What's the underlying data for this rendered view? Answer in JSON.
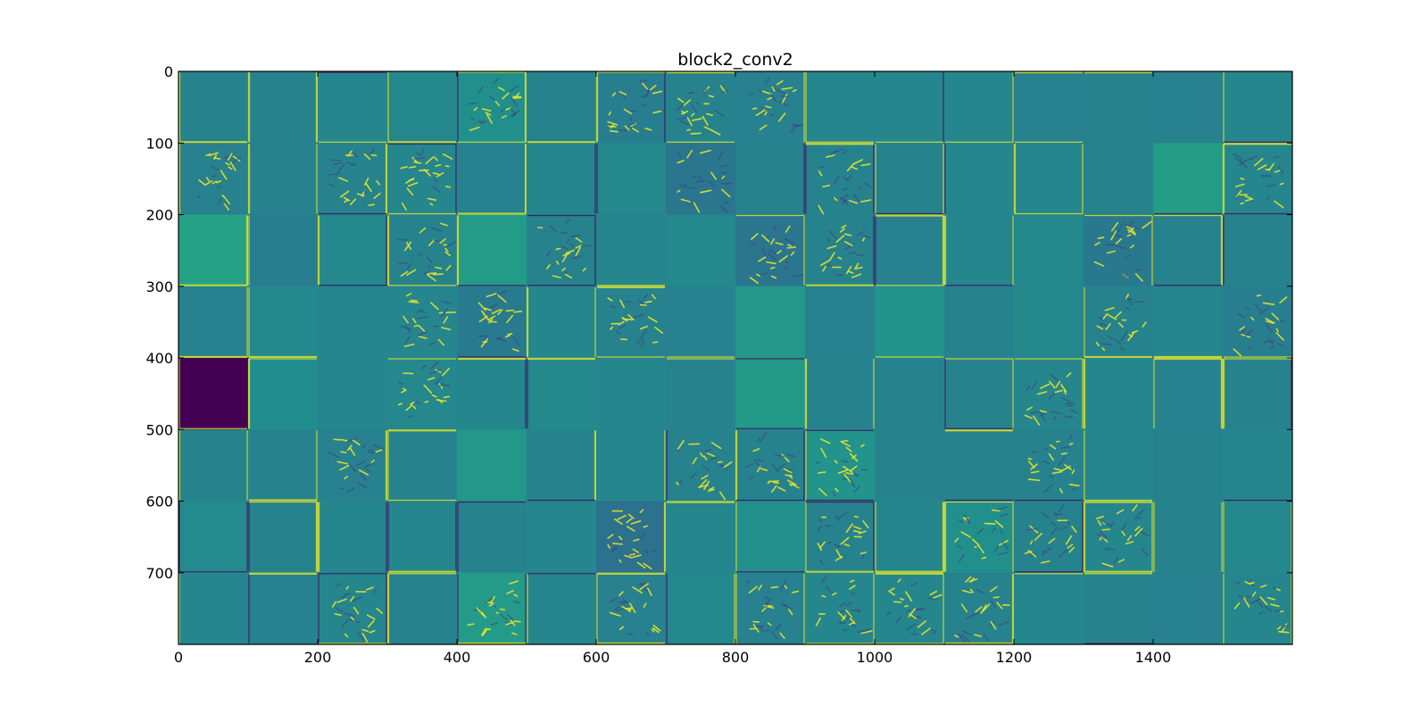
{
  "chart_data": {
    "type": "heatmap",
    "title": "block2_conv2",
    "xlabel": "",
    "ylabel": "",
    "xlim": [
      0,
      1600
    ],
    "ylim": [
      800,
      0
    ],
    "x_ticks": [
      0,
      200,
      400,
      600,
      800,
      1000,
      1200,
      1400
    ],
    "y_ticks": [
      0,
      100,
      200,
      300,
      400,
      500,
      600,
      700
    ],
    "x_tick_labels": [
      "0",
      "200",
      "400",
      "600",
      "800",
      "1000",
      "1200",
      "1400"
    ],
    "y_tick_labels": [
      "0",
      "100",
      "200",
      "300",
      "400",
      "500",
      "600",
      "700"
    ],
    "colormap": "viridis",
    "grid": {
      "rows": 8,
      "cols": 16,
      "tile_size": 100
    },
    "tiles": [
      [
        0.45,
        0.45,
        0.46,
        0.47,
        0.5,
        0.45,
        0.43,
        0.45,
        0.44,
        0.46,
        0.46,
        0.46,
        0.44,
        0.45,
        0.44,
        0.46
      ],
      [
        0.44,
        0.45,
        0.45,
        0.46,
        0.44,
        0.46,
        0.47,
        0.4,
        0.45,
        0.45,
        0.45,
        0.46,
        0.46,
        0.45,
        0.56,
        0.46
      ],
      [
        0.58,
        0.43,
        0.47,
        0.45,
        0.55,
        0.45,
        0.46,
        0.47,
        0.4,
        0.45,
        0.44,
        0.46,
        0.47,
        0.41,
        0.45,
        0.45
      ],
      [
        0.44,
        0.47,
        0.46,
        0.46,
        0.42,
        0.46,
        0.45,
        0.44,
        0.53,
        0.44,
        0.52,
        0.45,
        0.47,
        0.45,
        0.46,
        0.43
      ],
      [
        0.0,
        0.49,
        0.46,
        0.47,
        0.46,
        0.47,
        0.46,
        0.45,
        0.54,
        0.45,
        0.45,
        0.45,
        0.46,
        0.46,
        0.44,
        0.45
      ],
      [
        0.45,
        0.45,
        0.44,
        0.45,
        0.53,
        0.45,
        0.46,
        0.45,
        0.45,
        0.52,
        0.45,
        0.45,
        0.45,
        0.46,
        0.45,
        0.46
      ],
      [
        0.48,
        0.45,
        0.46,
        0.46,
        0.45,
        0.46,
        0.38,
        0.46,
        0.5,
        0.45,
        0.46,
        0.5,
        0.45,
        0.46,
        0.45,
        0.47
      ],
      [
        0.46,
        0.44,
        0.46,
        0.45,
        0.55,
        0.46,
        0.44,
        0.47,
        0.44,
        0.46,
        0.46,
        0.45,
        0.46,
        0.45,
        0.44,
        0.46
      ]
    ],
    "textured_tiles": [
      [
        0,
        4
      ],
      [
        0,
        6
      ],
      [
        0,
        7
      ],
      [
        0,
        8
      ],
      [
        1,
        0
      ],
      [
        1,
        2
      ],
      [
        1,
        3
      ],
      [
        1,
        7
      ],
      [
        1,
        9
      ],
      [
        1,
        15
      ],
      [
        2,
        3
      ],
      [
        2,
        5
      ],
      [
        2,
        8
      ],
      [
        2,
        9
      ],
      [
        2,
        13
      ],
      [
        3,
        3
      ],
      [
        3,
        4
      ],
      [
        3,
        6
      ],
      [
        3,
        13
      ],
      [
        3,
        15
      ],
      [
        4,
        3
      ],
      [
        4,
        12
      ],
      [
        5,
        2
      ],
      [
        5,
        7
      ],
      [
        5,
        8
      ],
      [
        5,
        9
      ],
      [
        5,
        12
      ],
      [
        6,
        6
      ],
      [
        6,
        9
      ],
      [
        6,
        11
      ],
      [
        6,
        12
      ],
      [
        6,
        13
      ],
      [
        7,
        2
      ],
      [
        7,
        4
      ],
      [
        7,
        6
      ],
      [
        7,
        8
      ],
      [
        7,
        9
      ],
      [
        7,
        10
      ],
      [
        7,
        11
      ],
      [
        7,
        15
      ]
    ]
  }
}
